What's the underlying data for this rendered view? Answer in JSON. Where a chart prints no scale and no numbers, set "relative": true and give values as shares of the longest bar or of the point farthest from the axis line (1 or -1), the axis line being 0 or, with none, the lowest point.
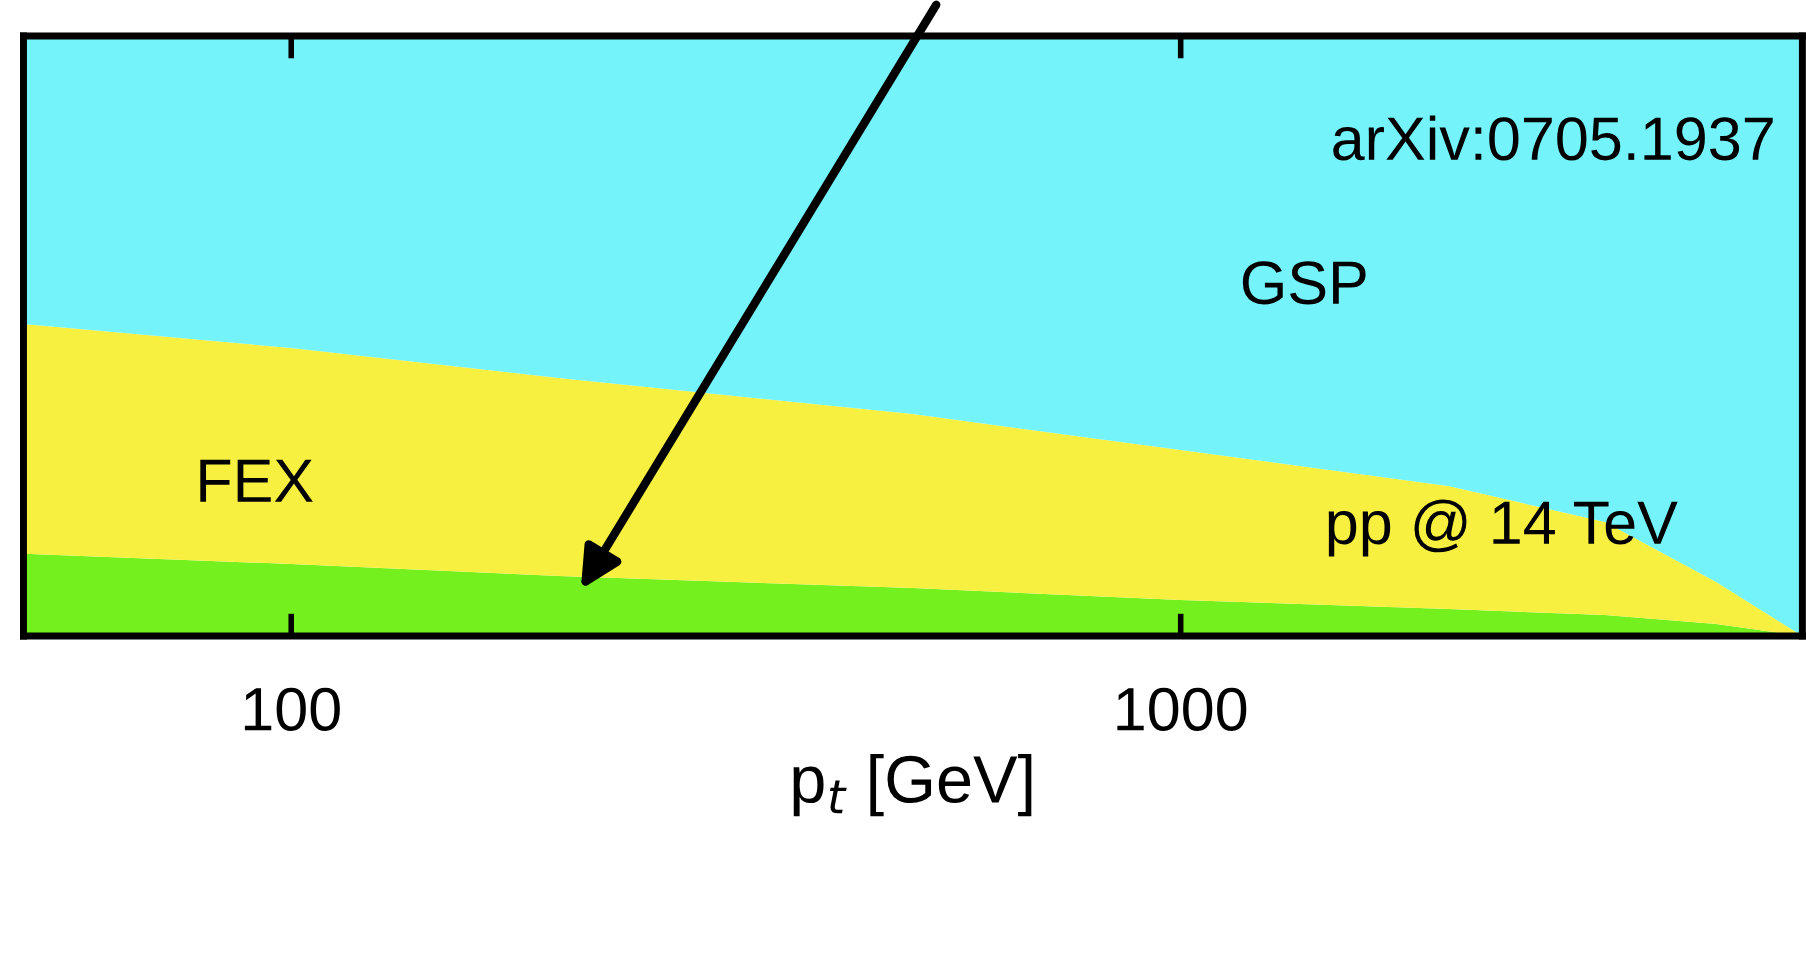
{
  "chart_data": {
    "type": "area",
    "stacked": true,
    "relative": true,
    "log": "x",
    "xlabel": "p$_{t}$ [GeV]",
    "x": [
      50,
      100,
      200,
      500,
      1000,
      2000,
      3000,
      4000,
      5000
    ],
    "xlim": [
      50,
      5000
    ],
    "xticks": [
      100,
      1000
    ],
    "tick_labels": "x",
    "grid": false,
    "legend": false,
    "series": [
      {
        "color": "#74f01e",
        "values": [
          0.137,
          0.12,
          0.1,
          0.08,
          0.06,
          0.045,
          0.035,
          0.02,
          0.0
        ]
      },
      {
        "name": "FEX",
        "color": "#f8f040",
        "values": [
          0.383,
          0.36,
          0.33,
          0.29,
          0.25,
          0.205,
          0.155,
          0.07,
          0.0
        ]
      },
      {
        "name": "GSP",
        "color": "#74f4fa",
        "values": [
          0.48,
          0.52,
          0.57,
          0.63,
          0.69,
          0.75,
          0.81,
          0.91,
          1.0
        ]
      }
    ],
    "annotations": [
      "arXiv:0705.1937",
      "pp @ 14 TeV"
    ]
  }
}
